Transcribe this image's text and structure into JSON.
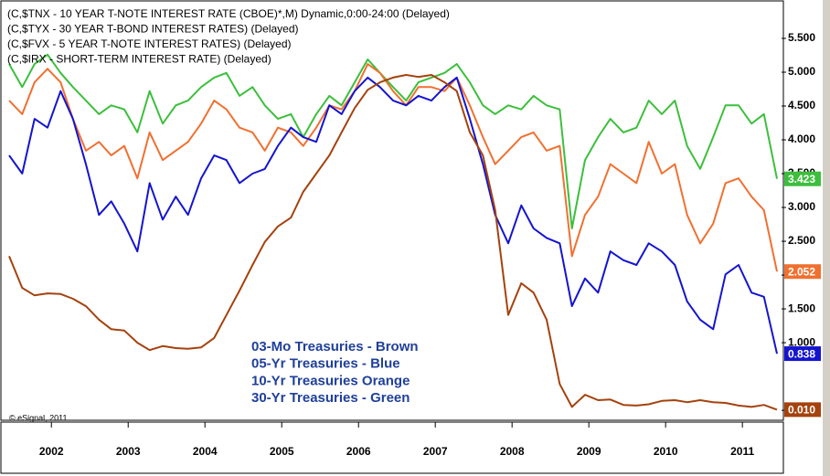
{
  "chart_data": {
    "type": "line",
    "series": [
      {
        "name": "(C,$TNX - 10 YEAR T-NOTE INTEREST RATE (CBOE)*,M) Dynamic,0:00-24:00 (Delayed)",
        "color": "#f07030",
        "last_label": "2.052",
        "values": [
          4.58,
          4.38,
          4.85,
          5.05,
          4.85,
          4.31,
          3.84,
          3.97,
          3.77,
          3.91,
          3.43,
          4.11,
          3.7,
          3.84,
          3.97,
          4.24,
          4.58,
          4.45,
          4.18,
          4.11,
          3.84,
          4.18,
          4.11,
          3.91,
          4.18,
          4.51,
          4.45,
          4.72,
          5.12,
          4.99,
          4.72,
          4.51,
          4.78,
          4.78,
          4.72,
          4.92,
          4.51,
          4.04,
          3.64,
          3.84,
          4.04,
          4.11,
          3.84,
          3.91,
          2.28,
          2.89,
          3.16,
          3.64,
          3.5,
          3.36,
          3.97,
          3.5,
          3.64,
          2.89,
          2.47,
          2.76,
          3.36,
          3.43,
          3.16,
          2.96,
          2.052
        ]
      },
      {
        "name": "(C,$TYX - 30 YEAR T-BOND INTEREST RATES)  (Delayed)",
        "color": "#3cbf3c",
        "last_label": "3.423",
        "values": [
          5.12,
          4.78,
          5.12,
          5.26,
          4.99,
          4.78,
          4.58,
          4.38,
          4.51,
          4.45,
          4.11,
          4.72,
          4.24,
          4.51,
          4.58,
          4.78,
          4.92,
          4.99,
          4.65,
          4.78,
          4.51,
          4.31,
          4.38,
          4.04,
          4.38,
          4.65,
          4.51,
          4.85,
          5.19,
          4.99,
          4.78,
          4.58,
          4.85,
          4.92,
          4.99,
          5.12,
          4.85,
          4.51,
          4.38,
          4.51,
          4.45,
          4.65,
          4.51,
          4.45,
          2.69,
          3.7,
          4.04,
          4.31,
          4.11,
          4.18,
          4.58,
          4.38,
          4.58,
          3.91,
          3.57,
          4.04,
          4.51,
          4.51,
          4.24,
          4.38,
          3.423
        ]
      },
      {
        "name": "(C,$FVX - 5 YEAR T-NOTE INTEREST RATES)  (Delayed)",
        "color": "#1414d0",
        "last_label": "0.838",
        "values": [
          3.77,
          3.5,
          4.31,
          4.18,
          4.72,
          4.31,
          3.64,
          2.89,
          3.09,
          2.76,
          2.35,
          3.36,
          2.82,
          3.16,
          2.89,
          3.43,
          3.77,
          3.7,
          3.36,
          3.5,
          3.57,
          3.91,
          4.18,
          4.04,
          3.97,
          4.51,
          4.38,
          4.72,
          4.92,
          4.78,
          4.58,
          4.51,
          4.65,
          4.58,
          4.78,
          4.92,
          4.31,
          3.64,
          2.89,
          2.47,
          3.03,
          2.69,
          2.55,
          2.47,
          1.54,
          1.95,
          1.74,
          2.35,
          2.22,
          2.15,
          2.47,
          2.35,
          2.15,
          1.61,
          1.34,
          1.2,
          2.01,
          2.15,
          1.74,
          1.68,
          0.838
        ]
      },
      {
        "name": "(C,$IRX - SHORT-TERM INTEREST RATE)  (Delayed)",
        "color": "#a4420e",
        "last_label": "0.010",
        "values": [
          2.28,
          1.81,
          1.7,
          1.73,
          1.72,
          1.65,
          1.54,
          1.34,
          1.2,
          1.18,
          1.0,
          0.89,
          0.95,
          0.92,
          0.91,
          0.93,
          1.07,
          1.41,
          1.77,
          2.15,
          2.49,
          2.72,
          2.85,
          3.23,
          3.5,
          3.77,
          4.11,
          4.47,
          4.74,
          4.85,
          4.92,
          4.96,
          4.93,
          4.96,
          4.85,
          4.72,
          4.11,
          3.77,
          2.96,
          1.41,
          1.88,
          1.74,
          1.34,
          0.39,
          0.05,
          0.23,
          0.15,
          0.16,
          0.08,
          0.07,
          0.09,
          0.14,
          0.15,
          0.12,
          0.15,
          0.12,
          0.11,
          0.07,
          0.05,
          0.08,
          0.01
        ]
      }
    ],
    "x": [
      2001.45,
      2001.62,
      2001.78,
      2001.95,
      2002.12,
      2002.28,
      2002.45,
      2002.62,
      2002.78,
      2002.95,
      2003.12,
      2003.28,
      2003.45,
      2003.62,
      2003.78,
      2003.95,
      2004.12,
      2004.28,
      2004.45,
      2004.62,
      2004.78,
      2004.95,
      2005.12,
      2005.28,
      2005.45,
      2005.62,
      2005.78,
      2005.95,
      2006.12,
      2006.28,
      2006.45,
      2006.62,
      2006.78,
      2006.95,
      2007.12,
      2007.28,
      2007.45,
      2007.62,
      2007.78,
      2007.95,
      2008.12,
      2008.28,
      2008.45,
      2008.62,
      2008.78,
      2008.95,
      2009.12,
      2009.28,
      2009.45,
      2009.62,
      2009.78,
      2009.95,
      2010.12,
      2010.28,
      2010.45,
      2010.62,
      2010.78,
      2010.95,
      2011.12,
      2011.28,
      2011.45
    ],
    "xlim": [
      2001.39,
      2011.51
    ],
    "xticks": [
      2002,
      2003,
      2004,
      2005,
      2006,
      2007,
      2008,
      2009,
      2010,
      2011
    ],
    "ylim": [
      -0.12,
      6.0
    ],
    "yticks": [
      {
        "value": 0,
        "label": "0.000"
      },
      {
        "value": 1,
        "label": "1.000"
      },
      {
        "value": 1.5,
        "label": "1.500"
      },
      {
        "value": 2,
        "label": "2.000"
      },
      {
        "value": 2.5,
        "label": "2.500"
      },
      {
        "value": 3,
        "label": "3.000"
      },
      {
        "value": 3.5,
        "label": "3.500"
      },
      {
        "value": 4,
        "label": "4.000"
      },
      {
        "value": 4.5,
        "label": "4.500"
      },
      {
        "value": 5,
        "label": "5.000"
      },
      {
        "value": 5.5,
        "label": "5.500"
      }
    ],
    "annotations": [
      "03-Mo Treasuries - Brown",
      "05-Yr Treasuries - Blue",
      "10-Yr Treasuries Orange",
      "30-Yr Treasuries - Green"
    ],
    "annotation_color": "#1f3f9a",
    "source": "© eSignal, 2011"
  }
}
